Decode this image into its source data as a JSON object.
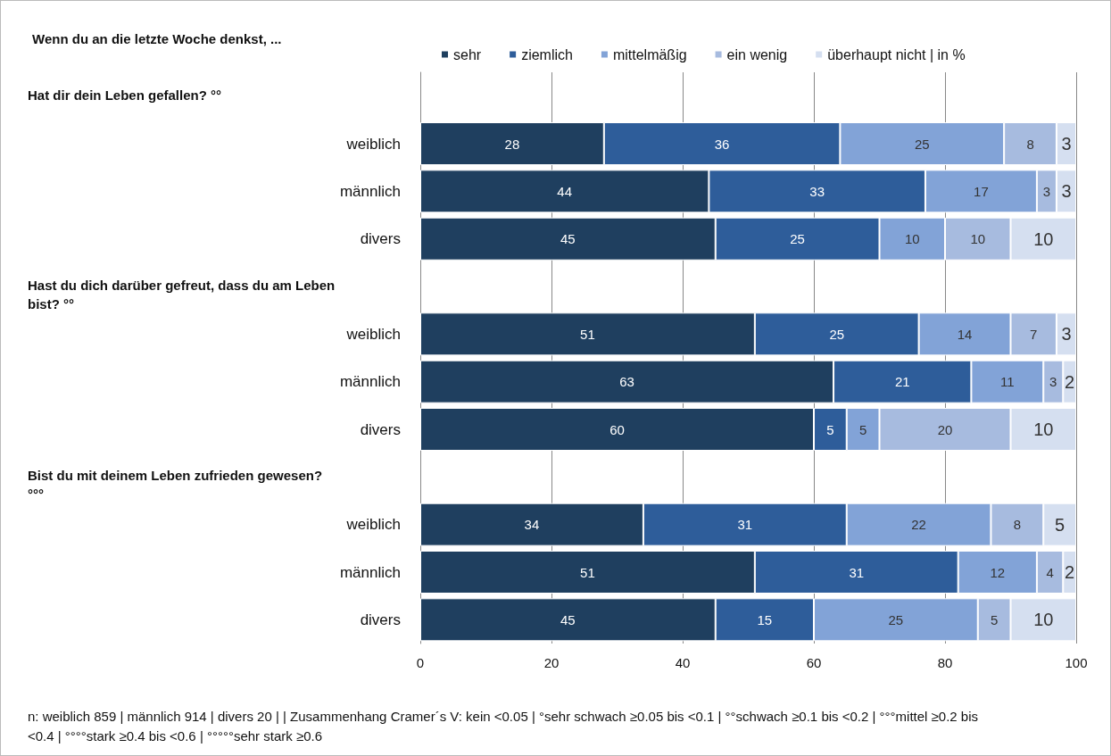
{
  "chart_data": {
    "type": "bar",
    "orientation": "horizontal",
    "stacked": true,
    "title": "Wenn du an die letzte Woche denkst, ...",
    "categories": [
      null,
      "weiblich",
      "männlich",
      "divers",
      null,
      "weiblich",
      "männlich",
      "divers",
      null,
      "weiblich",
      "männlich",
      "divers"
    ],
    "series": [
      {
        "name": "sehr",
        "color": "#1f3f5f",
        "values": [
          null,
          28,
          44,
          45,
          null,
          51,
          63,
          60,
          null,
          34,
          51,
          45
        ]
      },
      {
        "name": "ziemlich",
        "color": "#2e5d9a",
        "values": [
          null,
          36,
          33,
          25,
          null,
          25,
          21,
          5,
          null,
          31,
          31,
          15
        ]
      },
      {
        "name": "mittelmäßig",
        "color": "#82a3d7",
        "values": [
          null,
          25,
          17,
          10,
          null,
          14,
          11,
          5,
          null,
          22,
          12,
          25
        ]
      },
      {
        "name": "ein wenig",
        "color": "#a7bbdf",
        "values": [
          null,
          8,
          3,
          10,
          null,
          7,
          3,
          20,
          null,
          8,
          4,
          5
        ]
      },
      {
        "name": "überhaupt nicht | in %",
        "color": "#d5dff0",
        "values": [
          null,
          3,
          3,
          10,
          null,
          3,
          2,
          10,
          null,
          5,
          2,
          10
        ]
      }
    ],
    "xlim": [
      0,
      100
    ],
    "xticks": [
      0,
      20,
      40,
      60,
      80,
      100
    ],
    "grid": "x",
    "legend": "top",
    "data_labels": true,
    "annotations": [
      "Hat dir dein Leben gefallen? °°",
      "Hast du dich darüber gefreut, dass du am Leben bist? °°",
      "Bist du mit deinem Leben zufrieden gewesen? °°°",
      "n: weiblich 859 | männlich 914 | divers 20 | | Zusammenhang Cramer´s V: kein <0.05 | °sehr schwach ≥0.05 bis <0.1 | °°schwach ≥0.1 bis <0.2 | °°°mittel ≥0.2 bis <0.4 | °°°°stark ≥0.4 bis <0.6 | °°°°°sehr stark ≥0.6"
    ]
  }
}
